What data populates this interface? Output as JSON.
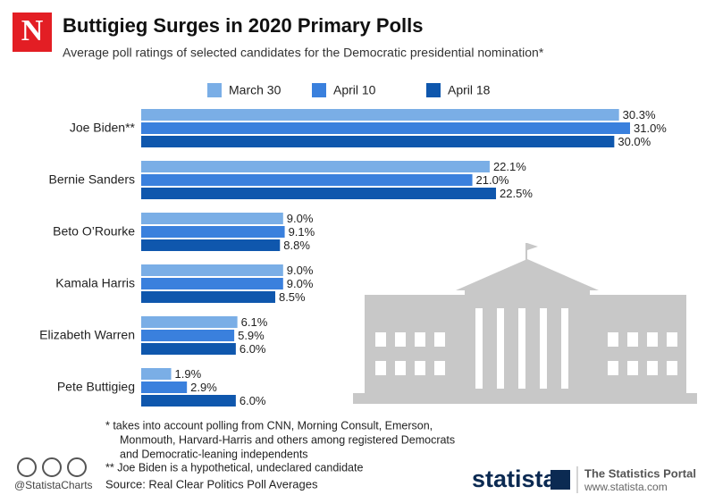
{
  "chart_data": {
    "type": "bar",
    "orientation": "horizontal",
    "logo": "N",
    "title": "Buttigieg Surges in 2020 Primary Polls",
    "subtitle": "Average poll ratings of selected candidates for the Democratic presidential nomination*",
    "categories": [
      "Joe Biden**",
      "Bernie Sanders",
      "Beto O’Rourke",
      "Kamala Harris",
      "Elizabeth Warren",
      "Pete Buttigieg"
    ],
    "series": [
      {
        "name": "March 30",
        "color": "#7aaee6",
        "values": [
          30.3,
          22.1,
          9.0,
          9.0,
          6.1,
          1.9
        ],
        "value_labels": [
          "30.3%",
          "22.1%",
          "9.0%",
          "9.0%",
          "6.1%",
          "1.9%"
        ]
      },
      {
        "name": "April 10",
        "color": "#3a80dd",
        "values": [
          31.0,
          21.0,
          9.1,
          9.0,
          5.9,
          2.9
        ],
        "value_labels": [
          "31.0%",
          "21.0%",
          "9.1%",
          "9.0%",
          "5.9%",
          "2.9%"
        ]
      },
      {
        "name": "April 18",
        "color": "#0f57ad",
        "values": [
          30.0,
          22.5,
          8.8,
          8.5,
          6.0,
          6.0
        ],
        "value_labels": [
          "30.0%",
          "22.5%",
          "8.8%",
          "8.5%",
          "6.0%",
          "6.0%"
        ]
      }
    ],
    "footnotes": [
      "*  takes into account polling from CNN, Morning Consult, Emerson,",
      "Monmouth, Harvard-Harris and others among registered Democrats",
      "and Democratic-leaning independents",
      "** Joe Biden is a hypothetical, undeclared candidate"
    ],
    "source": "Source: Real Clear Politics Poll Averages",
    "handle": "@StatistaCharts",
    "brand": "statista",
    "portal": "The Statistics Portal",
    "url": "www.statista.com"
  }
}
